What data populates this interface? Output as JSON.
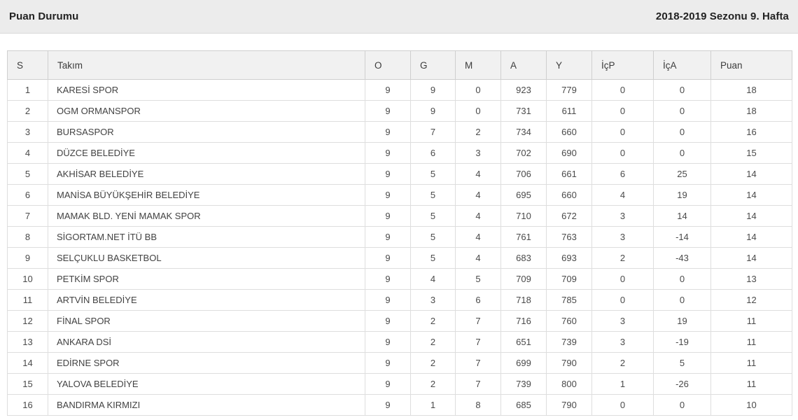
{
  "header": {
    "title": "Puan Durumu",
    "season": "2018-2019 Sezonu 9. Hafta"
  },
  "table": {
    "columns": [
      "S",
      "Takım",
      "O",
      "G",
      "M",
      "A",
      "Y",
      "İçP",
      "İçA",
      "Puan"
    ],
    "rows": [
      [
        "1",
        "KARESİ SPOR",
        "9",
        "9",
        "0",
        "923",
        "779",
        "0",
        "0",
        "18"
      ],
      [
        "2",
        "OGM ORMANSPOR",
        "9",
        "9",
        "0",
        "731",
        "611",
        "0",
        "0",
        "18"
      ],
      [
        "3",
        "BURSASPOR",
        "9",
        "7",
        "2",
        "734",
        "660",
        "0",
        "0",
        "16"
      ],
      [
        "4",
        "DÜZCE BELEDİYE",
        "9",
        "6",
        "3",
        "702",
        "690",
        "0",
        "0",
        "15"
      ],
      [
        "5",
        "AKHİSAR BELEDİYE",
        "9",
        "5",
        "4",
        "706",
        "661",
        "6",
        "25",
        "14"
      ],
      [
        "6",
        "MANİSA BÜYÜKŞEHİR BELEDİYE",
        "9",
        "5",
        "4",
        "695",
        "660",
        "4",
        "19",
        "14"
      ],
      [
        "7",
        "MAMAK BLD. YENİ MAMAK SPOR",
        "9",
        "5",
        "4",
        "710",
        "672",
        "3",
        "14",
        "14"
      ],
      [
        "8",
        "SİGORTAM.NET İTÜ BB",
        "9",
        "5",
        "4",
        "761",
        "763",
        "3",
        "-14",
        "14"
      ],
      [
        "9",
        "SELÇUKLU BASKETBOL",
        "9",
        "5",
        "4",
        "683",
        "693",
        "2",
        "-43",
        "14"
      ],
      [
        "10",
        "PETKİM SPOR",
        "9",
        "4",
        "5",
        "709",
        "709",
        "0",
        "0",
        "13"
      ],
      [
        "11",
        "ARTVİN BELEDİYE",
        "9",
        "3",
        "6",
        "718",
        "785",
        "0",
        "0",
        "12"
      ],
      [
        "12",
        "FİNAL SPOR",
        "9",
        "2",
        "7",
        "716",
        "760",
        "3",
        "19",
        "11"
      ],
      [
        "13",
        "ANKARA DSİ",
        "9",
        "2",
        "7",
        "651",
        "739",
        "3",
        "-19",
        "11"
      ],
      [
        "14",
        "EDİRNE SPOR",
        "9",
        "2",
        "7",
        "699",
        "790",
        "2",
        "5",
        "11"
      ],
      [
        "15",
        "YALOVA BELEDİYE",
        "9",
        "2",
        "7",
        "739",
        "800",
        "1",
        "-26",
        "11"
      ],
      [
        "16",
        "BANDIRMA KIRMIZI",
        "9",
        "1",
        "8",
        "685",
        "790",
        "0",
        "0",
        "10"
      ]
    ]
  }
}
